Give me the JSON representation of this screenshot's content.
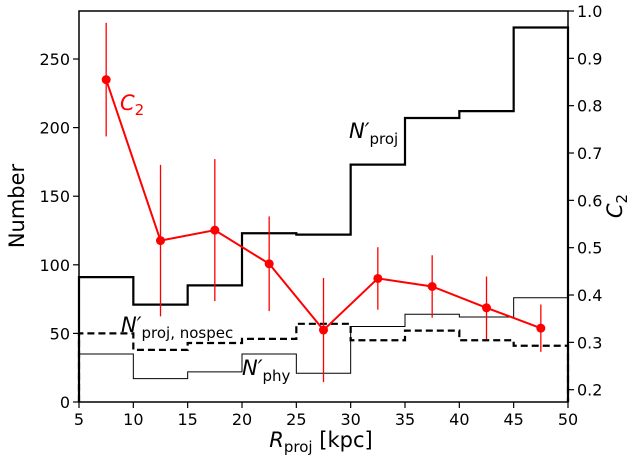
{
  "chart_data": {
    "type": "step+line",
    "x_edges": [
      5,
      10,
      15,
      20,
      25,
      30,
      35,
      40,
      45,
      50
    ],
    "xlim": [
      5,
      50
    ],
    "xticks": [
      5,
      10,
      15,
      20,
      25,
      30,
      35,
      40,
      45,
      50
    ],
    "xlabel": {
      "main": "R",
      "sub": "proj",
      "unit": " [kpc]"
    },
    "ylabel_left": "Number",
    "ylabel_right": {
      "main": "C",
      "sub": "2"
    },
    "ylim_left": [
      0,
      285
    ],
    "yticks_left": [
      0,
      50,
      100,
      150,
      200,
      250
    ],
    "ylim_right": [
      0.174,
      1.0
    ],
    "yticks_right": [
      "0.2",
      "0.3",
      "0.4",
      "0.5",
      "0.6",
      "0.7",
      "0.8",
      "0.9",
      "1.0"
    ],
    "grid": false,
    "step_series": [
      {
        "label_main": "N′",
        "label_sub": "proj",
        "style": "thick-solid",
        "color": "#000000",
        "values": [
          91,
          71,
          85,
          123,
          122,
          173,
          207,
          212,
          273
        ]
      },
      {
        "label_main": "N′",
        "label_sub": "proj, nospec",
        "style": "dashed",
        "color": "#000000",
        "values": [
          50,
          38,
          43,
          46,
          57,
          45,
          52,
          45,
          41
        ]
      },
      {
        "label_main": "N′",
        "label_sub": "phy",
        "style": "thin-solid",
        "color": "#000000",
        "values": [
          35,
          17,
          22,
          35,
          21,
          55,
          64,
          62,
          76
        ]
      }
    ],
    "line_series": {
      "label_main": "C",
      "label_sub": "2",
      "color": "#ff0000",
      "axis": "right",
      "x": [
        7.5,
        12.5,
        17.5,
        22.5,
        27.5,
        32.5,
        37.5,
        42.5,
        47.5
      ],
      "y": [
        0.855,
        0.515,
        0.537,
        0.466,
        0.326,
        0.435,
        0.418,
        0.373,
        0.33
      ],
      "err_low": [
        0.12,
        0.16,
        0.15,
        0.1,
        0.11,
        0.066,
        0.066,
        0.066,
        0.05
      ],
      "err_high": [
        0.12,
        0.16,
        0.15,
        0.1,
        0.11,
        0.066,
        0.066,
        0.066,
        0.05
      ]
    }
  }
}
